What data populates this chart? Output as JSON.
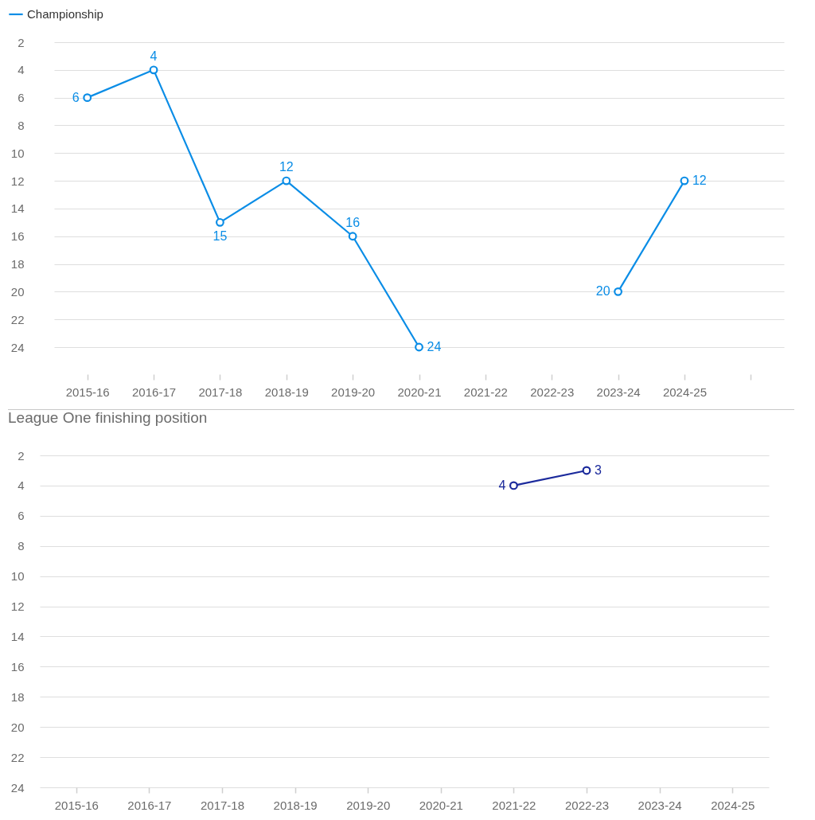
{
  "chart_data": [
    {
      "type": "line",
      "categories": [
        "2015-16",
        "2016-17",
        "2017-18",
        "2018-19",
        "2019-20",
        "2020-21",
        "2021-22",
        "2022-23",
        "2023-24",
        "2024-25",
        null
      ],
      "series": [
        {
          "name": "Championship",
          "color": "#0b8de6",
          "values": [
            6,
            4,
            15,
            12,
            16,
            24,
            null,
            null,
            20,
            12,
            null
          ]
        }
      ],
      "ylim": [
        24,
        2
      ],
      "yticks": [
        2,
        4,
        6,
        8,
        10,
        12,
        14,
        16,
        18,
        20,
        22,
        24
      ],
      "grid": "y",
      "legend": "top left",
      "marker": "circle",
      "data_labels": true
    },
    {
      "type": "line",
      "title": "League One finishing position",
      "categories": [
        "2015-16",
        "2016-17",
        "2017-18",
        "2018-19",
        "2019-20",
        "2020-21",
        "2021-22",
        "2022-23",
        "2023-24",
        "2024-25"
      ],
      "series": [
        {
          "color": "#1b2a9c",
          "values": [
            null,
            null,
            null,
            null,
            null,
            null,
            4,
            3,
            null,
            null
          ]
        }
      ],
      "ylim": [
        24,
        2
      ],
      "yticks": [
        2,
        4,
        6,
        8,
        10,
        12,
        14,
        16,
        18,
        20,
        22,
        24
      ],
      "grid": "y",
      "marker": "circle",
      "data_labels": true
    }
  ]
}
